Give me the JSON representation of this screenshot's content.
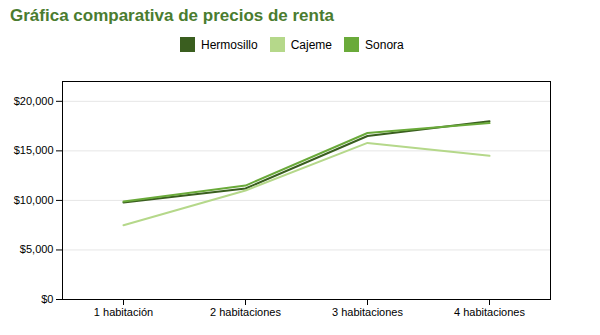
{
  "chart_data": {
    "type": "line",
    "title": "Gráfica comparativa de precios de renta",
    "categories": [
      "1 habitación",
      "2 habitaciones",
      "3 habitaciones",
      "4 habitaciones"
    ],
    "series": [
      {
        "name": "Hermosillo",
        "color": "#3a5e1f",
        "values": [
          9800,
          11200,
          16500,
          18000
        ]
      },
      {
        "name": "Cajeme",
        "color": "#b5d88a",
        "values": [
          7500,
          11000,
          15800,
          14500
        ]
      },
      {
        "name": "Sonora",
        "color": "#6aaa3a",
        "values": [
          9900,
          11500,
          16800,
          17800
        ]
      }
    ],
    "ylim": [
      0,
      22000
    ],
    "yticks": [
      {
        "value": 0,
        "label": "$0"
      },
      {
        "value": 5000,
        "label": "$5,000"
      },
      {
        "value": 10000,
        "label": "$10,000"
      },
      {
        "value": 15000,
        "label": "$15,000"
      },
      {
        "value": 20000,
        "label": "$20,000"
      }
    ],
    "grid": true,
    "legend": "top"
  }
}
